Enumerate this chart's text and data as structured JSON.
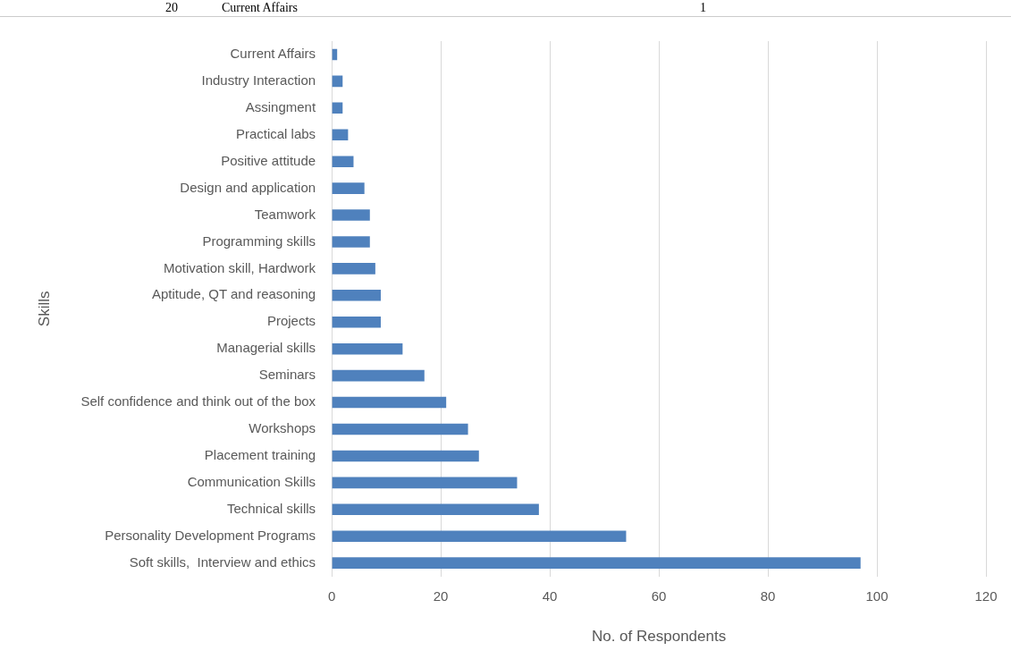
{
  "chart_data": {
    "type": "bar",
    "orientation": "horizontal",
    "xlabel": "No. of Respondents",
    "ylabel": "Skills",
    "categories": [
      "Current Affairs",
      "Industry Interaction",
      "Assingment",
      "Practical labs",
      "Positive attitude",
      "Design and application",
      "Teamwork",
      "Programming skills",
      "Motivation skill, Hardwork",
      "Aptitude, QT and reasoning",
      "Projects",
      "Managerial skills",
      "Seminars",
      "Self confidence and think out of the box",
      "Workshops",
      "Placement training",
      "Communication Skills",
      "Technical skills",
      "Personality Development Programs",
      "Soft skills,  Interview and ethics"
    ],
    "values": [
      1,
      2,
      2,
      3,
      4,
      6,
      7,
      7,
      8,
      9,
      9,
      13,
      17,
      21,
      25,
      27,
      34,
      38,
      54,
      97
    ],
    "color": "#4f81bd",
    "xlim": [
      0,
      120
    ],
    "xticks": [
      0,
      20,
      40,
      60,
      80,
      100,
      120
    ],
    "grid": "x",
    "legend": false,
    "annotations": [
      "20",
      "Current Affairs",
      "1"
    ]
  }
}
